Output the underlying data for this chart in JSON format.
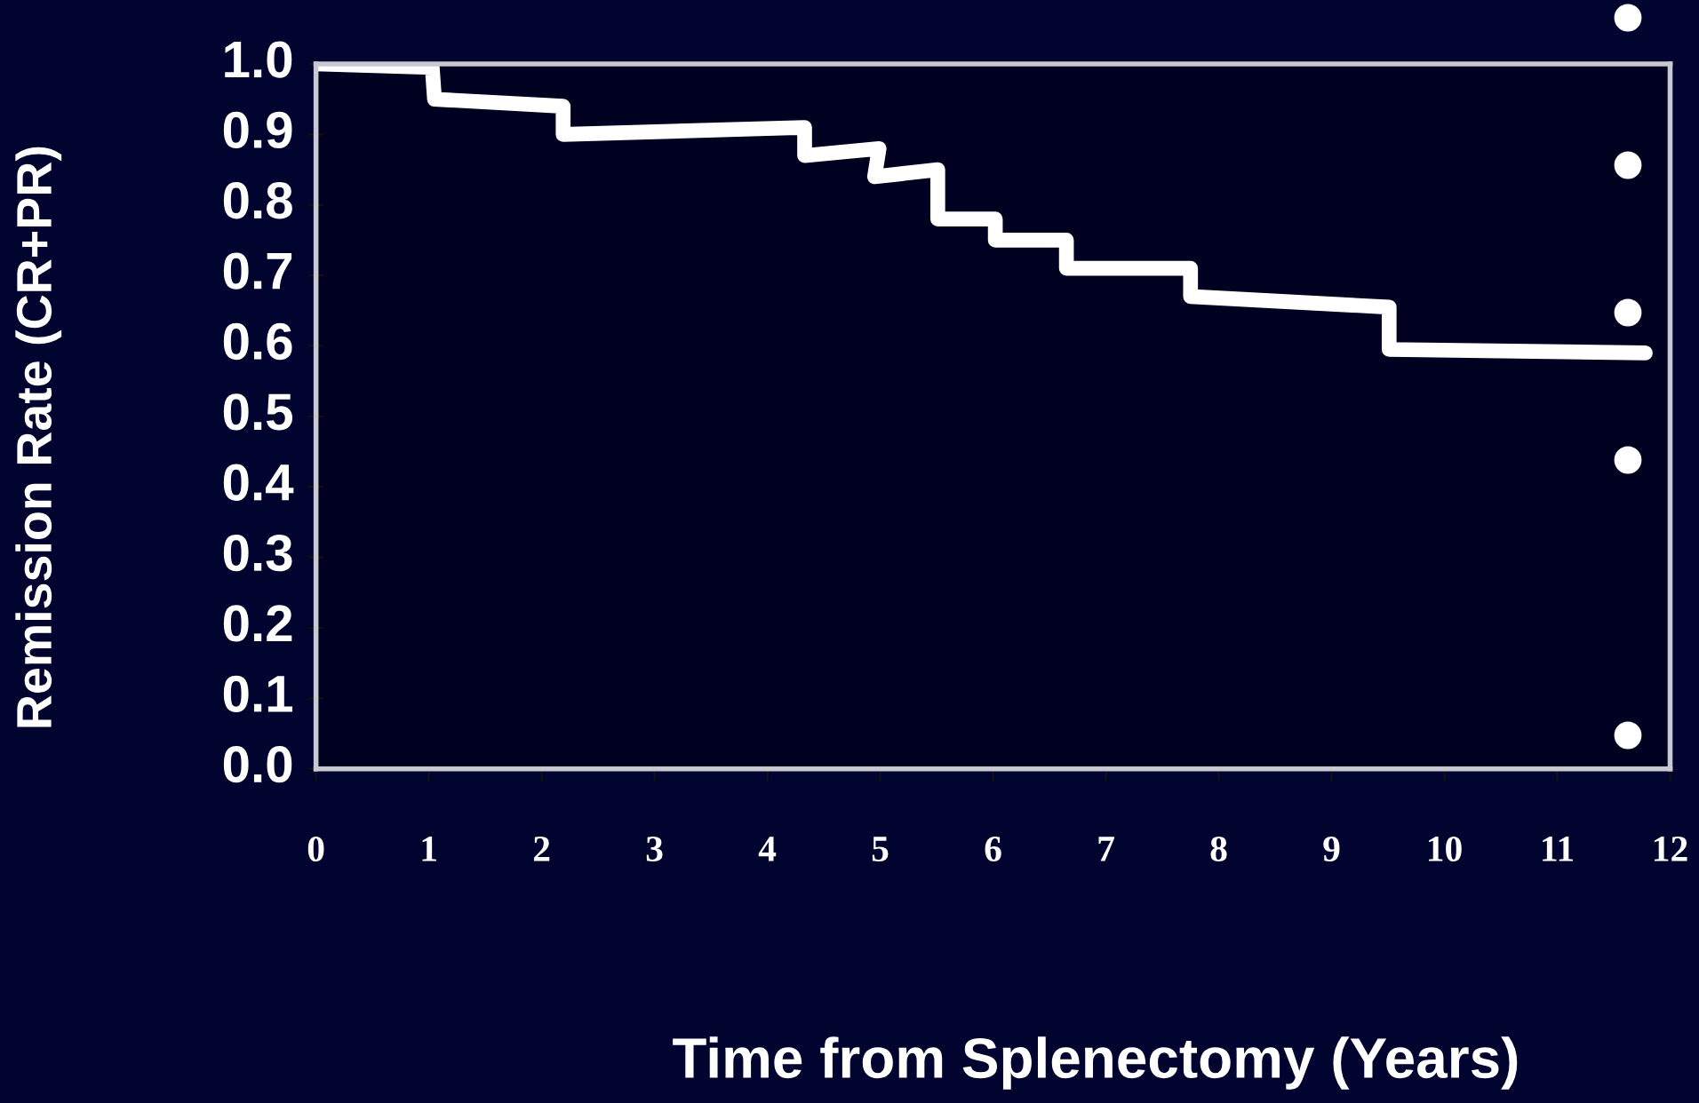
{
  "chart_data": {
    "type": "line",
    "xlabel": "Time from Splenectomy (Years)",
    "ylabel": "Remission Rate (CR+PR)",
    "xlim": [
      0,
      12
    ],
    "xticks": [
      0,
      1,
      2,
      3,
      4,
      5,
      6,
      7,
      8,
      9,
      10,
      11,
      12
    ],
    "ylim": [
      0,
      1.0
    ],
    "yticks": [
      {
        "value": 0,
        "label": "0.0"
      },
      0.1,
      0.2,
      0.3,
      0.4,
      0.5,
      0.6,
      0.7,
      0.8,
      0.9,
      {
        "value": 1,
        "label": "1.0"
      }
    ],
    "x": [
      0,
      1.03,
      1.05,
      2.19,
      2.19,
      4.33,
      4.33,
      4.99,
      4.95,
      5.51,
      5.51,
      6.02,
      6.02,
      6.65,
      6.65,
      7.75,
      7.75,
      9.51,
      9.51,
      11.78
    ],
    "series": [
      {
        "color": "#ffffff",
        "values": [
          1.0,
          0.995,
          0.95,
          0.94,
          0.9,
          0.91,
          0.87,
          0.88,
          0.84,
          0.85,
          0.78,
          0.78,
          0.75,
          0.75,
          0.71,
          0.71,
          0.67,
          0.655,
          0.595,
          0.59
        ]
      }
    ],
    "grid": false,
    "legend": false,
    "marker": "none",
    "line_style": "solid"
  }
}
